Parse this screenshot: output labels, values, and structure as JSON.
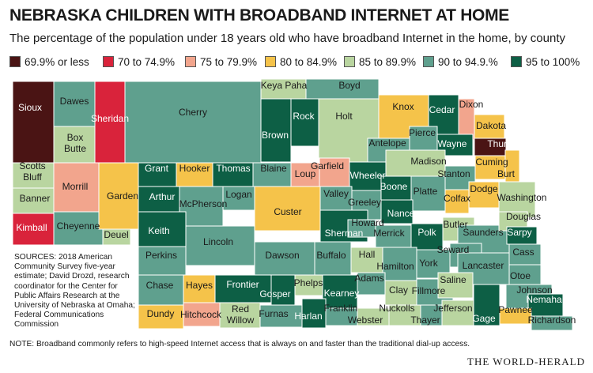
{
  "title": "NEBRASKA CHILDREN WITH BROADBAND INTERNET AT HOME",
  "subtitle": "The percentage of the population under 18 years old who have broadband Internet in the home, by county",
  "legend": [
    {
      "label": "69.9% or less",
      "color": "#4a1414"
    },
    {
      "label": "70 to 74.9%",
      "color": "#d9233b"
    },
    {
      "label": "75 to 79.9%",
      "color": "#f2a58d"
    },
    {
      "label": "80 to 84.9%",
      "color": "#f5c34a"
    },
    {
      "label": "85 to 89.9%",
      "color": "#b9d5a0"
    },
    {
      "label": "90 to 94.9.%",
      "color": "#5fa08e"
    },
    {
      "label": "95 to 100%",
      "color": "#0d5f45"
    }
  ],
  "counties": [
    {
      "name": "Sioux",
      "category": 0
    },
    {
      "name": "Dawes",
      "category": 5
    },
    {
      "name": "Sheridan",
      "category": 1
    },
    {
      "name": "Cherry",
      "category": 5
    },
    {
      "name": "Keya Paha",
      "category": 4
    },
    {
      "name": "Boyd",
      "category": 5
    },
    {
      "name": "Knox",
      "category": 3
    },
    {
      "name": "Cedar",
      "category": 6
    },
    {
      "name": "Dixon",
      "category": 2
    },
    {
      "name": "Dakota",
      "category": 3
    },
    {
      "name": "Thurston",
      "category": 0
    },
    {
      "name": "Box Butte",
      "category": 4
    },
    {
      "name": "Brown",
      "category": 6
    },
    {
      "name": "Rock",
      "category": 6
    },
    {
      "name": "Holt",
      "category": 4
    },
    {
      "name": "Antelope",
      "category": 5
    },
    {
      "name": "Pierce",
      "category": 5
    },
    {
      "name": "Wayne",
      "category": 6
    },
    {
      "name": "Scotts Bluff",
      "category": 4
    },
    {
      "name": "Morrill",
      "category": 2
    },
    {
      "name": "Banner",
      "category": 4
    },
    {
      "name": "Kimball",
      "category": 1
    },
    {
      "name": "Cheyenne",
      "category": 5
    },
    {
      "name": "Deuel",
      "category": 4
    },
    {
      "name": "Garden",
      "category": 3
    },
    {
      "name": "Grant",
      "category": 6
    },
    {
      "name": "Hooker",
      "category": 3
    },
    {
      "name": "Thomas",
      "category": 6
    },
    {
      "name": "Blaine",
      "category": 5
    },
    {
      "name": "Loup",
      "category": 2
    },
    {
      "name": "Garfield",
      "category": 2
    },
    {
      "name": "Wheeler",
      "category": 6
    },
    {
      "name": "Madison",
      "category": 4
    },
    {
      "name": "Stanton",
      "category": 5
    },
    {
      "name": "Cuming",
      "category": 3
    },
    {
      "name": "Burt",
      "category": 3
    },
    {
      "name": "Arthur",
      "category": 6
    },
    {
      "name": "McPherson",
      "category": 5
    },
    {
      "name": "Logan",
      "category": 5
    },
    {
      "name": "Custer",
      "category": 3
    },
    {
      "name": "Valley",
      "category": 5
    },
    {
      "name": "Greeley",
      "category": 5
    },
    {
      "name": "Boone",
      "category": 6
    },
    {
      "name": "Platte",
      "category": 5
    },
    {
      "name": "Colfax",
      "category": 3
    },
    {
      "name": "Dodge",
      "category": 3
    },
    {
      "name": "Washington",
      "category": 4
    },
    {
      "name": "Keith",
      "category": 6
    },
    {
      "name": "Lincoln",
      "category": 5
    },
    {
      "name": "Sherman",
      "category": 6
    },
    {
      "name": "Howard",
      "category": 5
    },
    {
      "name": "Nance",
      "category": 6
    },
    {
      "name": "Merrick",
      "category": 5
    },
    {
      "name": "Polk",
      "category": 6
    },
    {
      "name": "Butler",
      "category": 4
    },
    {
      "name": "Saunders",
      "category": 5
    },
    {
      "name": "Douglas",
      "category": 4
    },
    {
      "name": "Sarpy",
      "category": 6
    },
    {
      "name": "Perkins",
      "category": 5
    },
    {
      "name": "Dawson",
      "category": 5
    },
    {
      "name": "Buffalo",
      "category": 5
    },
    {
      "name": "Hall",
      "category": 4
    },
    {
      "name": "Hamilton",
      "category": 5
    },
    {
      "name": "York",
      "category": 5
    },
    {
      "name": "Seward",
      "category": 5
    },
    {
      "name": "Lancaster",
      "category": 5
    },
    {
      "name": "Cass",
      "category": 5
    },
    {
      "name": "Chase",
      "category": 5
    },
    {
      "name": "Hayes",
      "category": 3
    },
    {
      "name": "Frontier",
      "category": 6
    },
    {
      "name": "Gosper",
      "category": 6
    },
    {
      "name": "Phelps",
      "category": 4
    },
    {
      "name": "Kearney",
      "category": 6
    },
    {
      "name": "Adams",
      "category": 5
    },
    {
      "name": "Clay",
      "category": 4
    },
    {
      "name": "Fillmore",
      "category": 5
    },
    {
      "name": "Saline",
      "category": 4
    },
    {
      "name": "Otoe",
      "category": 5
    },
    {
      "name": "Johnson",
      "category": 5
    },
    {
      "name": "Nemaha",
      "category": 6
    },
    {
      "name": "Dundy",
      "category": 3
    },
    {
      "name": "Hitchcock",
      "category": 2
    },
    {
      "name": "Red Willow",
      "category": 4
    },
    {
      "name": "Furnas",
      "category": 5
    },
    {
      "name": "Harlan",
      "category": 6
    },
    {
      "name": "Franklin",
      "category": 5
    },
    {
      "name": "Webster",
      "category": 4
    },
    {
      "name": "Nuckolls",
      "category": 4
    },
    {
      "name": "Thayer",
      "category": 5
    },
    {
      "name": "Jefferson",
      "category": 4
    },
    {
      "name": "Gage",
      "category": 6
    },
    {
      "name": "Pawnee",
      "category": 3
    },
    {
      "name": "Richardson",
      "category": 5
    }
  ],
  "sources": "SOURCES: 2018 American Community Survey five-year estimate; David Drozd, research coordinator for the Center for Public Affairs Research at the University of Nebraska at Omaha; Federal Communications Commission",
  "note": "NOTE: Broadband commonly refers to high-speed Internet access that is always on and faster than the traditional dial-up access.",
  "credit": "THE WORLD-HERALD"
}
